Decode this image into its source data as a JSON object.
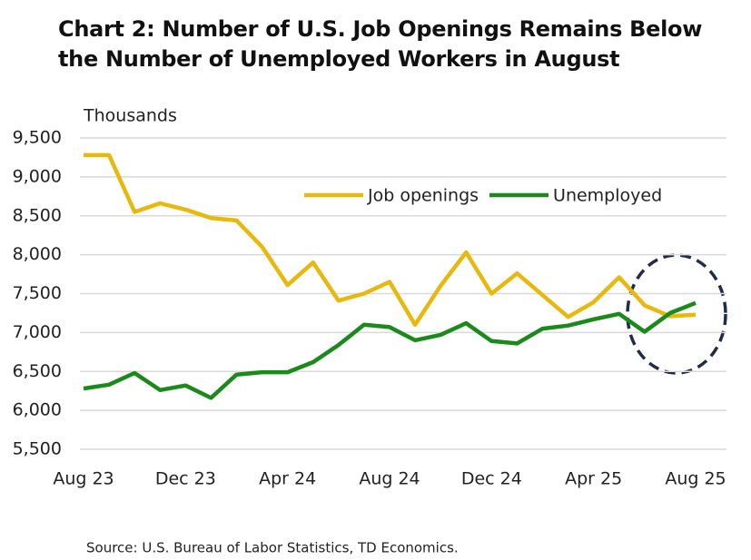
{
  "chart_data": {
    "type": "line",
    "title": "Chart 2: Number of U.S. Job Openings Remains Below the Number of Unemployed Workers in August",
    "y_label": "Thousands",
    "source": "Source: U.S. Bureau of Labor Statistics, TD Economics.",
    "categories": [
      "Aug 23",
      null,
      null,
      null,
      "Dec 23",
      null,
      null,
      null,
      "Apr 24",
      null,
      null,
      null,
      "Aug 24",
      null,
      null,
      null,
      "Dec 24",
      null,
      null,
      null,
      "Apr 25",
      null,
      null,
      null,
      "Aug 25"
    ],
    "series": [
      {
        "name": "Job openings",
        "color": "#e8b80c",
        "values": [
          9280,
          9280,
          8550,
          8660,
          8580,
          8470,
          8440,
          8100,
          7610,
          7900,
          7410,
          7500,
          7650,
          7100,
          7600,
          8030,
          7500,
          7760,
          7480,
          7200,
          7390,
          7710,
          7350,
          7210,
          7230
        ]
      },
      {
        "name": "Unemployed",
        "color": "#1a8a1a",
        "values": [
          6280,
          6330,
          6480,
          6260,
          6320,
          6160,
          6460,
          6490,
          6490,
          6620,
          6840,
          7100,
          7070,
          6900,
          6970,
          7120,
          6890,
          6860,
          7050,
          7090,
          7170,
          7240,
          7010,
          7250,
          7380
        ]
      }
    ],
    "ylim": [
      5500,
      9500
    ],
    "yticks": [
      {
        "value": 5500,
        "label": "5,500"
      },
      {
        "value": 6000,
        "label": "6,000"
      },
      {
        "value": 6500,
        "label": "6,500"
      },
      {
        "value": 7000,
        "label": "7,000"
      },
      {
        "value": 7500,
        "label": "7,500"
      },
      {
        "value": 8000,
        "label": "8,000"
      },
      {
        "value": 8500,
        "label": "8,500"
      },
      {
        "value": 9000,
        "label": "9,000"
      },
      {
        "value": 9500,
        "label": "9,500"
      }
    ],
    "grid": true,
    "legend": "top"
  }
}
